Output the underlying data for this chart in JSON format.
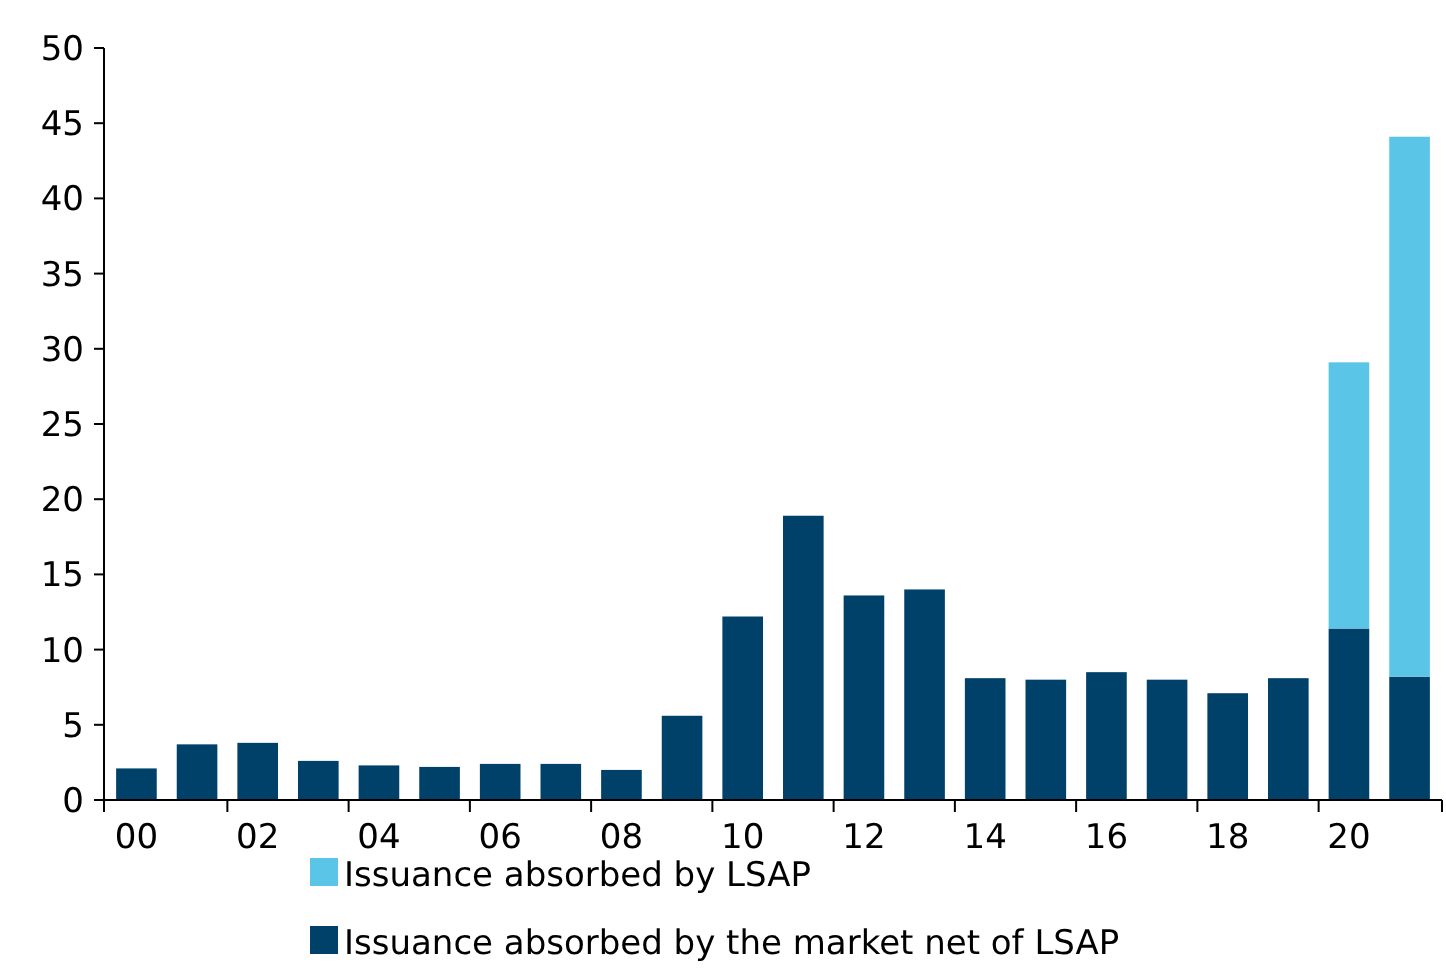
{
  "chart_data": {
    "type": "bar",
    "stacked": true,
    "categories": [
      "00",
      null,
      "02",
      null,
      "04",
      null,
      "06",
      null,
      "08",
      null,
      "10",
      null,
      "12",
      null,
      "14",
      null,
      "16",
      null,
      "18",
      null,
      "20",
      null
    ],
    "series": [
      {
        "name": "Issuance absorbed by the market net of LSAP",
        "color": "#00416a",
        "values": [
          2.1,
          3.7,
          3.8,
          2.6,
          2.3,
          2.2,
          2.4,
          2.4,
          2.0,
          5.6,
          12.2,
          18.9,
          13.6,
          14.0,
          8.1,
          8.0,
          8.5,
          8.0,
          7.1,
          8.1,
          11.4,
          8.2
        ]
      },
      {
        "name": "Issuance absorbed by LSAP",
        "color": "#5bc5e8",
        "values": [
          null,
          null,
          null,
          null,
          null,
          null,
          null,
          null,
          null,
          null,
          null,
          null,
          null,
          null,
          null,
          null,
          null,
          null,
          null,
          null,
          17.7,
          35.9
        ]
      }
    ],
    "ylim": [
      0,
      50
    ],
    "yticks": [
      0,
      5,
      10,
      15,
      20,
      25,
      30,
      35,
      40,
      45,
      50
    ],
    "grid": false,
    "legend": "bottom"
  }
}
